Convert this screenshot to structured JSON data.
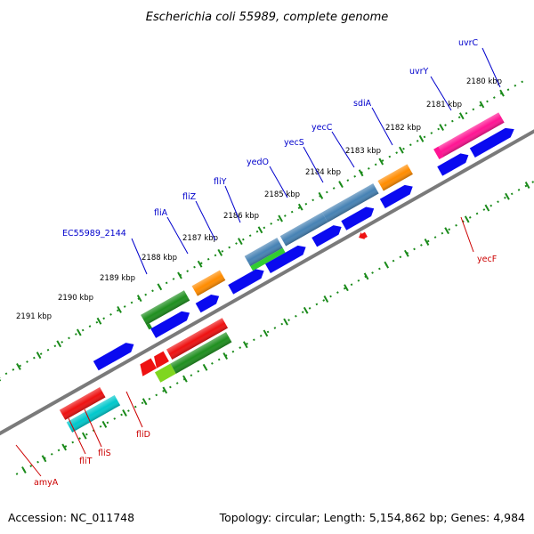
{
  "title": "Escherichia coli 55989, complete genome",
  "footer": {
    "accession": "Accession: NC_011748",
    "topology": "Topology: circular; Length: 5,154,862 bp; Genes: 4,984"
  },
  "colors": {
    "backbone": "#8a8a8a",
    "tick": "#1a8a1a",
    "label_top": "#0000cc",
    "label_bottom": "#cc0000",
    "blue": "#0a0af0",
    "green": "#1f8f1f",
    "orange": "#ff8c00",
    "red": "#ee1111",
    "steel": "#4682b4",
    "magenta": "#ff1493",
    "cyan": "#00c8cc",
    "lime": "#7fd61f"
  },
  "kbp_labels": [
    "2180 kbp",
    "2181 kbp",
    "2182 kbp",
    "2183 kbp",
    "2184 kbp",
    "2185 kbp",
    "2186 kbp",
    "2187 kbp",
    "2188 kbp",
    "2189 kbp",
    "2190 kbp",
    "2191 kbp"
  ],
  "top_genes": [
    "uvrC",
    "uvrY",
    "sdiA",
    "yecC",
    "yecS",
    "yedO",
    "fliY",
    "fliZ",
    "fliA",
    "EC55989_2144"
  ],
  "bottom_genes": [
    "yecF",
    "fliD",
    "fliS",
    "fliT",
    "amyA"
  ]
}
